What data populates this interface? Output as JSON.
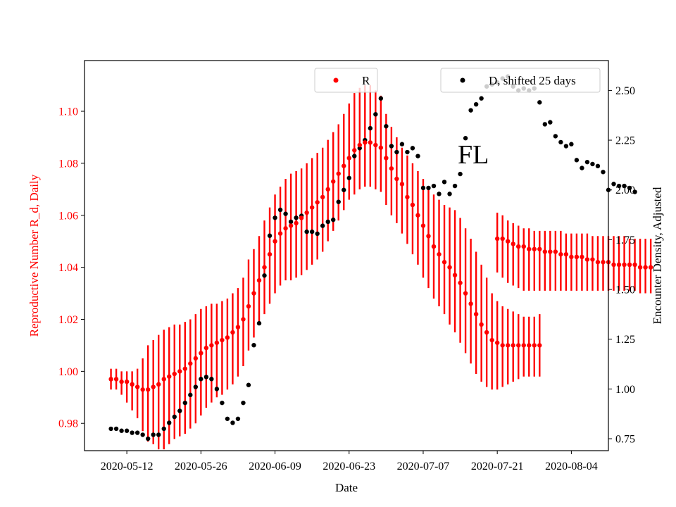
{
  "chart_data": {
    "type": "scatter",
    "xlabel": "Date",
    "ylabel_left": "Reproductive Number R_d, Daily",
    "ylabel_right": "Encounter Density, Adjusted",
    "annotation": "FL",
    "grid": false,
    "left_axis_color": "#ff0000",
    "x_range": [
      "2020-05-04",
      "2020-08-11"
    ],
    "x_ticks": [
      "2020-05-12",
      "2020-05-26",
      "2020-06-09",
      "2020-06-23",
      "2020-07-07",
      "2020-07-21",
      "2020-08-04"
    ],
    "ylim_left": [
      0.9695,
      1.1195
    ],
    "yticks_left": [
      "0.98",
      "1.00",
      "1.02",
      "1.04",
      "1.06",
      "1.08",
      "1.10"
    ],
    "ylim_right": [
      0.69,
      2.65
    ],
    "yticks_right": [
      "0.75",
      "1.00",
      "1.25",
      "1.50",
      "1.75",
      "2.00",
      "2.25",
      "2.50"
    ],
    "legend_r": {
      "label": "R",
      "placement": "top-center"
    },
    "legend_d": {
      "label": "D, shifted 25 days",
      "placement": "top-right"
    },
    "series": [
      {
        "name": "R",
        "axis": "left",
        "color": "#ff0000",
        "x_start": "2020-05-09",
        "values": [
          0.997,
          0.997,
          0.996,
          0.996,
          0.995,
          0.994,
          0.993,
          0.993,
          0.994,
          0.995,
          0.997,
          0.998,
          0.999,
          1.0,
          1.001,
          1.003,
          1.005,
          1.007,
          1.009,
          1.01,
          1.011,
          1.012,
          1.013,
          1.015,
          1.017,
          1.02,
          1.025,
          1.03,
          1.035,
          1.04,
          1.045,
          1.05,
          1.053,
          1.055,
          1.056,
          1.057,
          1.059,
          1.061,
          1.063,
          1.065,
          1.067,
          1.07,
          1.073,
          1.076,
          1.079,
          1.082,
          1.085,
          1.087,
          1.088,
          1.088,
          1.087,
          1.086,
          1.082,
          1.078,
          1.074,
          1.072,
          1.067,
          1.064,
          1.06,
          1.056,
          1.052,
          1.048,
          1.045,
          1.042,
          1.04,
          1.037,
          1.034,
          1.03,
          1.026,
          1.022,
          1.018,
          1.015,
          1.012,
          1.011,
          1.01,
          1.01,
          1.01,
          1.01,
          1.01,
          1.01,
          1.01,
          1.01
        ],
        "err_low": [
          0.993,
          0.993,
          0.991,
          0.988,
          0.985,
          0.982,
          0.977,
          0.973,
          0.972,
          0.97,
          0.97,
          0.972,
          0.974,
          0.975,
          0.976,
          0.978,
          0.98,
          0.983,
          0.986,
          0.988,
          0.99,
          0.991,
          0.993,
          0.995,
          0.998,
          1.002,
          1.008,
          1.013,
          1.018,
          1.022,
          1.026,
          1.03,
          1.033,
          1.035,
          1.035,
          1.036,
          1.037,
          1.039,
          1.041,
          1.043,
          1.046,
          1.05,
          1.054,
          1.058,
          1.062,
          1.066,
          1.068,
          1.07,
          1.071,
          1.071,
          1.07,
          1.069,
          1.064,
          1.06,
          1.057,
          1.053,
          1.049,
          1.045,
          1.041,
          1.036,
          1.032,
          1.028,
          1.025,
          1.022,
          1.018,
          1.015,
          1.011,
          1.007,
          1.003,
          0.999,
          0.996,
          0.994,
          0.993,
          0.993,
          0.994,
          0.995,
          0.996,
          0.997,
          0.998,
          0.998,
          0.998,
          0.998
        ],
        "err_high": [
          1.001,
          1.001,
          1.0,
          1.0,
          1.0,
          1.001,
          1.005,
          1.01,
          1.012,
          1.014,
          1.016,
          1.017,
          1.018,
          1.018,
          1.019,
          1.02,
          1.022,
          1.024,
          1.025,
          1.026,
          1.026,
          1.027,
          1.028,
          1.03,
          1.032,
          1.036,
          1.043,
          1.047,
          1.052,
          1.058,
          1.063,
          1.068,
          1.071,
          1.074,
          1.076,
          1.077,
          1.078,
          1.08,
          1.082,
          1.084,
          1.086,
          1.089,
          1.092,
          1.095,
          1.099,
          1.103,
          1.107,
          1.109,
          1.11,
          1.11,
          1.108,
          1.106,
          1.099,
          1.094,
          1.09,
          1.086,
          1.083,
          1.08,
          1.077,
          1.074,
          1.071,
          1.068,
          1.066,
          1.064,
          1.063,
          1.062,
          1.059,
          1.055,
          1.051,
          1.046,
          1.041,
          1.036,
          1.03,
          1.027,
          1.025,
          1.024,
          1.023,
          1.022,
          1.021,
          1.021,
          1.021,
          1.022
        ]
      },
      {
        "name": "R",
        "axis": "left",
        "color": "#ff0000",
        "x_start": "2020-07-21",
        "values": [
          1.051,
          1.051,
          1.05,
          1.049,
          1.048,
          1.048,
          1.047,
          1.047,
          1.047,
          1.046,
          1.046,
          1.046,
          1.045,
          1.045,
          1.044,
          1.044,
          1.044,
          1.043,
          1.043,
          1.042,
          1.042,
          1.042,
          1.041,
          1.041,
          1.041,
          1.041,
          1.041,
          1.04,
          1.04,
          1.04
        ],
        "err_low": [
          1.038,
          1.036,
          1.034,
          1.033,
          1.032,
          1.031,
          1.031,
          1.031,
          1.031,
          1.031,
          1.031,
          1.031,
          1.031,
          1.031,
          1.031,
          1.031,
          1.031,
          1.031,
          1.031,
          1.031,
          1.031,
          1.031,
          1.031,
          1.031,
          1.031,
          1.031,
          1.031,
          1.03,
          1.03,
          1.03
        ],
        "err_high": [
          1.061,
          1.06,
          1.058,
          1.057,
          1.056,
          1.055,
          1.055,
          1.054,
          1.054,
          1.054,
          1.054,
          1.054,
          1.054,
          1.053,
          1.053,
          1.053,
          1.053,
          1.053,
          1.052,
          1.052,
          1.052,
          1.052,
          1.052,
          1.052,
          1.052,
          1.051,
          1.051,
          1.051,
          1.051,
          1.051
        ]
      },
      {
        "name": "D, shifted 25 days",
        "axis": "right",
        "color": "#000000",
        "x_start": "2020-05-09",
        "values": [
          0.8,
          0.8,
          0.79,
          0.79,
          0.78,
          0.78,
          0.77,
          0.75,
          0.77,
          0.77,
          0.8,
          0.83,
          0.86,
          0.89,
          0.93,
          0.97,
          1.01,
          1.05,
          1.06,
          1.05,
          1.0,
          0.93,
          0.85,
          0.83,
          0.85,
          0.93,
          1.02,
          1.22,
          1.33,
          1.57,
          1.77,
          1.86,
          1.9,
          1.88,
          1.84,
          1.86,
          1.87,
          1.79,
          1.79,
          1.78,
          1.82,
          1.84,
          1.85,
          1.94,
          2.0,
          2.06,
          2.17,
          2.21,
          2.25,
          2.31,
          2.38,
          2.46,
          2.32,
          2.22,
          2.19,
          2.23,
          2.19,
          2.21,
          2.17,
          2.01,
          2.01,
          2.02,
          1.98,
          2.04,
          1.98,
          2.02,
          2.08,
          2.26,
          2.4,
          2.43,
          2.46,
          2.52,
          2.53,
          2.54,
          2.56,
          2.57,
          2.52,
          2.5,
          2.51,
          2.5,
          2.51,
          2.44,
          2.33,
          2.34,
          2.27,
          2.24,
          2.22,
          2.23,
          2.15,
          2.11,
          2.14,
          2.13,
          2.12,
          2.09,
          2.0,
          2.03,
          2.02,
          2.02,
          2.01,
          1.99
        ]
      }
    ]
  }
}
